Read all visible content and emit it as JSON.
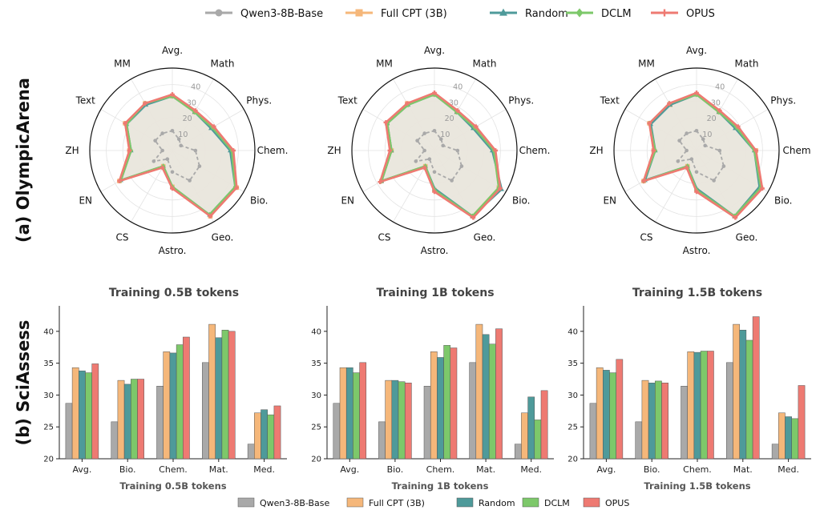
{
  "row_labels": [
    "(a) OlympicArena",
    "(b) SciAssess"
  ],
  "chart_data": [
    {
      "type": "radar",
      "panel": "OlympicArena radar (Training 0.5B tokens)",
      "title": "Training 0.5B tokens",
      "axes": [
        "Avg.",
        "Math",
        "Phys.",
        "Chem.",
        "Bio.",
        "Geo.",
        "Astro.",
        "CS",
        "EN",
        "ZH",
        "Text",
        "MM"
      ],
      "r_ticks": [
        10,
        20,
        30,
        40
      ],
      "r_max": 50,
      "series": [
        {
          "name": "Qwen3-8B-Base",
          "values": [
            12,
            8,
            6,
            14,
            19,
            21,
            13,
            6,
            13,
            6,
            12,
            12
          ]
        },
        {
          "name": "Full CPT (3B)",
          "values": [
            33,
            27,
            28,
            36,
            45,
            46,
            22,
            11,
            37,
            26,
            33,
            33
          ]
        },
        {
          "name": "Random",
          "values": [
            33,
            27,
            27,
            35,
            44,
            45,
            22,
            11,
            36,
            25,
            32,
            32
          ]
        },
        {
          "name": "DCLM",
          "values": [
            33,
            27,
            28,
            36,
            44,
            45,
            22,
            11,
            36,
            25,
            32,
            33
          ]
        },
        {
          "name": "OPUS",
          "values": [
            34,
            28,
            29,
            37,
            45,
            46,
            23,
            12,
            37,
            26,
            33,
            33
          ]
        }
      ]
    },
    {
      "type": "radar",
      "panel": "OlympicArena radar (Training 1B tokens)",
      "title": "Training 1B tokens",
      "axes": [
        "Avg.",
        "Math",
        "Phys.",
        "Chem.",
        "Bio.",
        "Geo.",
        "Astro.",
        "CS",
        "EN",
        "ZH",
        "Text",
        "MM"
      ],
      "r_ticks": [
        10,
        20,
        30,
        40
      ],
      "r_max": 50,
      "series": [
        {
          "name": "Qwen3-8B-Base",
          "values": [
            12,
            8,
            6,
            14,
            19,
            21,
            13,
            6,
            13,
            6,
            12,
            12
          ]
        },
        {
          "name": "Full CPT (3B)",
          "values": [
            34,
            27,
            28,
            36,
            45,
            46,
            24,
            11,
            37,
            26,
            33,
            33
          ]
        },
        {
          "name": "Random",
          "values": [
            34,
            27,
            27,
            35,
            47,
            46,
            23,
            11,
            37,
            26,
            33,
            32
          ]
        },
        {
          "name": "DCLM",
          "values": [
            34,
            27,
            28,
            36,
            45,
            46,
            24,
            11,
            37,
            26,
            33,
            32
          ]
        },
        {
          "name": "OPUS",
          "values": [
            35,
            28,
            29,
            37,
            46,
            47,
            25,
            12,
            38,
            27,
            34,
            33
          ]
        }
      ]
    },
    {
      "type": "radar",
      "panel": "OlympicArena radar (Training 1.5B tokens)",
      "title": "Training 1.5B tokens",
      "axes": [
        "Avg.",
        "Math",
        "Phys.",
        "Chem",
        "Bio.",
        "Geo.",
        "Astro.",
        "CS",
        "EN",
        "ZH",
        "Text",
        "MM"
      ],
      "r_ticks": [
        10,
        20,
        30,
        40
      ],
      "r_max": 50,
      "series": [
        {
          "name": "Qwen3-8B-Base",
          "values": [
            12,
            8,
            6,
            14,
            19,
            21,
            13,
            6,
            13,
            6,
            12,
            12
          ]
        },
        {
          "name": "Full CPT (3B)",
          "values": [
            34,
            27,
            28,
            36,
            45,
            46,
            24,
            11,
            37,
            26,
            33,
            32
          ]
        },
        {
          "name": "Random",
          "values": [
            34,
            27,
            27,
            35,
            44,
            46,
            23,
            11,
            36,
            25,
            32,
            32
          ]
        },
        {
          "name": "DCLM",
          "values": [
            34,
            27,
            28,
            35,
            45,
            46,
            24,
            11,
            37,
            25,
            33,
            33
          ]
        },
        {
          "name": "OPUS",
          "values": [
            35,
            28,
            29,
            36,
            46,
            47,
            25,
            12,
            37,
            26,
            33,
            33
          ]
        }
      ]
    },
    {
      "type": "bar",
      "panel": "SciAssess bars (Training 0.5B tokens)",
      "xlabel": "Training 0.5B tokens",
      "categories": [
        "Avg.",
        "Bio.",
        "Chem.",
        "Mat.",
        "Med."
      ],
      "ylim": [
        20,
        44
      ],
      "yticks": [
        20,
        25,
        30,
        35,
        40
      ],
      "series": [
        {
          "name": "Qwen3-8B-Base",
          "values": [
            28.7,
            25.8,
            31.4,
            35.1,
            22.3
          ]
        },
        {
          "name": "Full CPT (3B)",
          "values": [
            34.3,
            32.3,
            36.8,
            41.1,
            27.2
          ]
        },
        {
          "name": "Random",
          "values": [
            33.8,
            31.7,
            36.6,
            39.0,
            27.7
          ]
        },
        {
          "name": "DCLM",
          "values": [
            33.5,
            32.5,
            37.9,
            40.2,
            26.9
          ]
        },
        {
          "name": "OPUS",
          "values": [
            34.9,
            32.5,
            39.1,
            40.0,
            28.3
          ]
        }
      ]
    },
    {
      "type": "bar",
      "panel": "SciAssess bars (Training 1B tokens)",
      "xlabel": "Training 1B tokens",
      "categories": [
        "Avg.",
        "Bio.",
        "Chem.",
        "Mat.",
        "Med."
      ],
      "ylim": [
        20,
        44
      ],
      "yticks": [
        20,
        25,
        30,
        35,
        40
      ],
      "series": [
        {
          "name": "Qwen3-8B-Base",
          "values": [
            28.7,
            25.8,
            31.4,
            35.1,
            22.3
          ]
        },
        {
          "name": "Full CPT (3B)",
          "values": [
            34.3,
            32.3,
            36.8,
            41.1,
            27.2
          ]
        },
        {
          "name": "Random",
          "values": [
            34.3,
            32.3,
            35.9,
            39.5,
            29.7
          ]
        },
        {
          "name": "DCLM",
          "values": [
            33.5,
            32.1,
            37.8,
            38.0,
            26.1
          ]
        },
        {
          "name": "OPUS",
          "values": [
            35.1,
            31.9,
            37.4,
            40.4,
            30.7
          ]
        }
      ]
    },
    {
      "type": "bar",
      "panel": "SciAssess bars (Training 1.5B tokens)",
      "xlabel": "Training 1.5B tokens",
      "categories": [
        "Avg.",
        "Bio.",
        "Chem.",
        "Mat.",
        "Med."
      ],
      "ylim": [
        20,
        44
      ],
      "yticks": [
        20,
        25,
        30,
        35,
        40
      ],
      "series": [
        {
          "name": "Qwen3-8B-Base",
          "values": [
            28.7,
            25.8,
            31.4,
            35.1,
            22.3
          ]
        },
        {
          "name": "Full CPT (3B)",
          "values": [
            34.3,
            32.3,
            36.8,
            41.1,
            27.2
          ]
        },
        {
          "name": "Random",
          "values": [
            33.9,
            31.9,
            36.7,
            40.2,
            26.6
          ]
        },
        {
          "name": "DCLM",
          "values": [
            33.5,
            32.2,
            36.9,
            38.6,
            26.3
          ]
        },
        {
          "name": "OPUS",
          "values": [
            35.6,
            31.9,
            36.9,
            42.3,
            31.5
          ]
        }
      ]
    }
  ],
  "legend": {
    "placement": "top and bottom, horizontal",
    "entries": [
      "Qwen3-8B-Base",
      "Full CPT (3B)",
      "Random",
      "DCLM",
      "OPUS"
    ]
  },
  "colors": {
    "Qwen3-8B-Base": "#a9a9a9",
    "Full CPT (3B)": "#f5b77a",
    "Random": "#4e9a9a",
    "DCLM": "#7dc86a",
    "OPUS": "#ee7a72",
    "radar_fill": "#e9e5dc"
  },
  "markers": {
    "Qwen3-8B-Base": "circle",
    "Full CPT (3B)": "square",
    "Random": "triangle",
    "DCLM": "diamond",
    "OPUS": "plus"
  }
}
